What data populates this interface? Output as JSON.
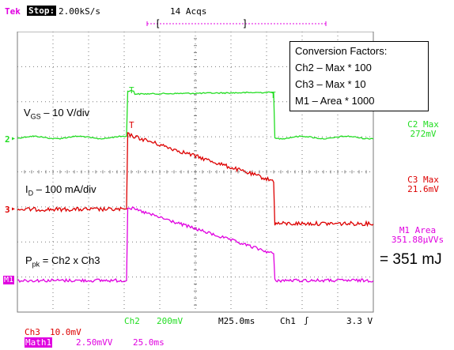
{
  "header": {
    "brand": "Tek",
    "state": "Stop:",
    "sample_rate": "2.00kS/s",
    "acquisitions": "14 Acqs"
  },
  "annotations": {
    "vgs_main": "V",
    "vgs_sub": "GS",
    "vgs_rest": " – 10 V/div",
    "id_main": "I",
    "id_sub": "D",
    "id_rest": " – 100 mA/div",
    "ppk_main": "P",
    "ppk_sub": "pk",
    "ppk_rest": " = Ch2 x Ch3",
    "energy": "= 351 mJ"
  },
  "conversion_box": {
    "title": "Conversion Factors:",
    "lines": [
      "Ch2 – Max * 100",
      "Ch3 – Max * 10",
      "M1 – Area * 1000"
    ]
  },
  "readouts": {
    "c2_label": "C2 Max",
    "c2_value": "272mV",
    "c3_label": "C3 Max",
    "c3_value": "21.6mV",
    "m1_label": "M1 Area",
    "m1_value": "351.88µVVs"
  },
  "markers": {
    "ch2": "2",
    "ch3": "3",
    "m1": "M1"
  },
  "status": {
    "ch2": "Ch2",
    "ch2_scale": "200mV",
    "timebase": "M25.0ms",
    "trig_source": "Ch1",
    "trig_slope": "ʃ",
    "trig_level": "3.3 V",
    "ch3": "Ch3",
    "ch3_scale": "10.0mV",
    "math1": "Math1",
    "math1_scale": "2.50mVV",
    "math1_time": "25.0ms"
  },
  "colors": {
    "ch2": "#22dd22",
    "ch3": "#dd0000",
    "math": "#e000e0",
    "grid": "#7a7a7a",
    "cursor": "#e000e0"
  }
}
